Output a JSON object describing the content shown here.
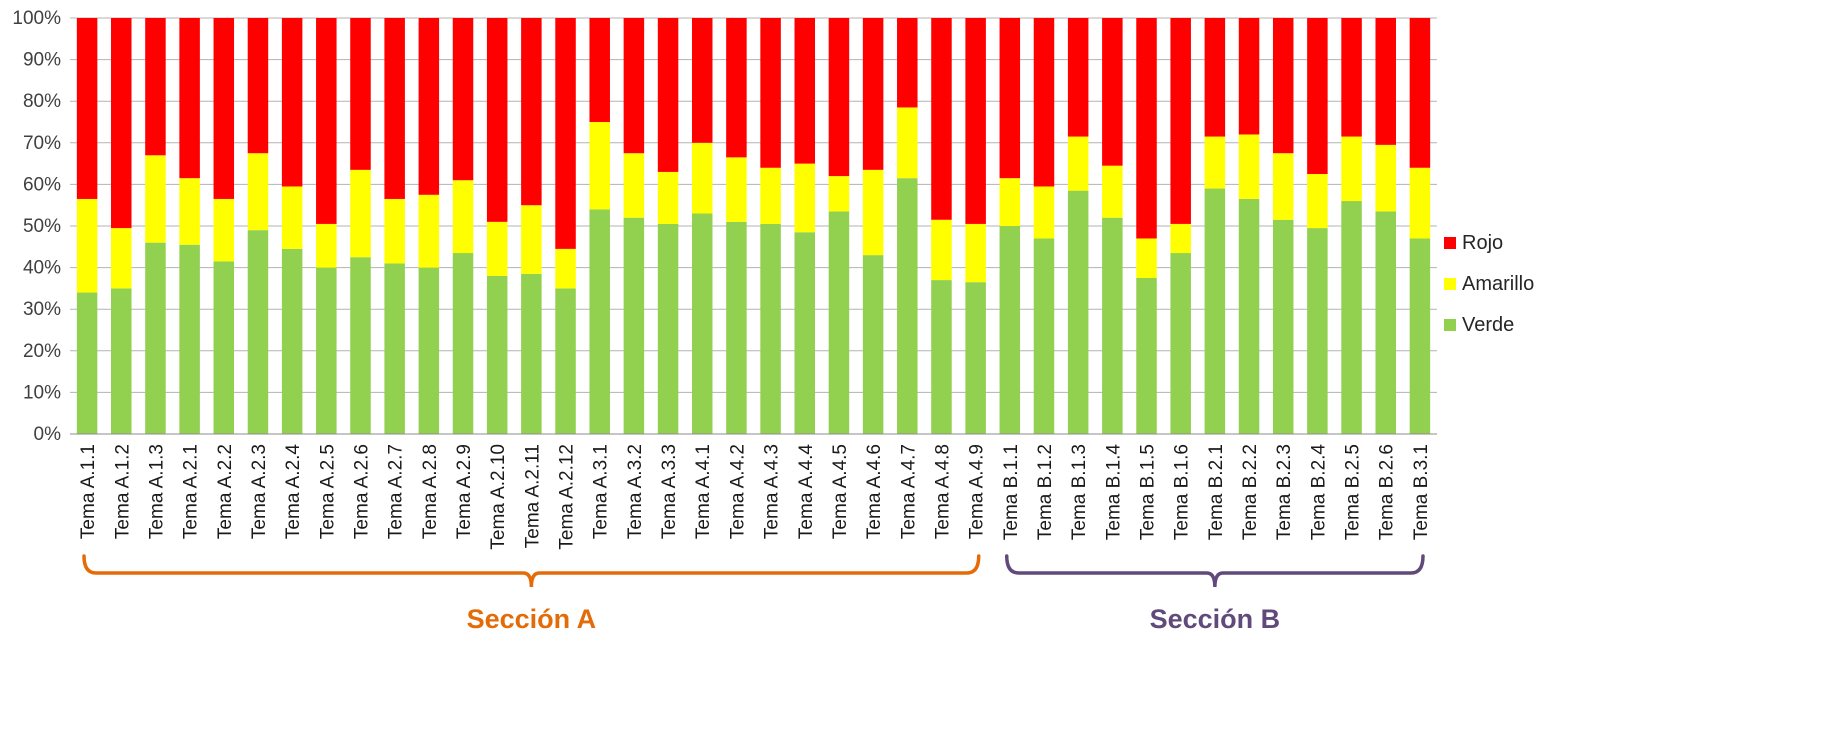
{
  "chart_data": {
    "type": "bar",
    "stacked": true,
    "percent_stacked": true,
    "categories": [
      "Tema A.1.1",
      "Tema A.1.2",
      "Tema A.1.3",
      "Tema A.2.1",
      "Tema A.2.2",
      "Tema A.2.3",
      "Tema A.2.4",
      "Tema A.2.5",
      "Tema A.2.6",
      "Tema A.2.7",
      "Tema A.2.8",
      "Tema A.2.9",
      "Tema A.2.10",
      "Tema A.2.11",
      "Tema A.2.12",
      "Tema A.3.1",
      "Tema A.3.2",
      "Tema A.3.3",
      "Tema A.4.1",
      "Tema A.4.2",
      "Tema A.4.3",
      "Tema A.4.4",
      "Tema A.4.5",
      "Tema A.4.6",
      "Tema A.4.7",
      "Tema A.4.8",
      "Tema A.4.9",
      "Tema B.1.1",
      "Tema B.1.2",
      "Tema B.1.3",
      "Tema B.1.4",
      "Tema B.1.5",
      "Tema B.1.6",
      "Tema B.2.1",
      "Tema B.2.2",
      "Tema B.2.3",
      "Tema B.2.4",
      "Tema B.2.5",
      "Tema B.2.6",
      "Tema B.3.1"
    ],
    "series": [
      {
        "name": "Verde",
        "color": "#92d050",
        "values": [
          34,
          35,
          46,
          45.5,
          41.5,
          49,
          44.5,
          40,
          42.5,
          41,
          40,
          43.5,
          38,
          38.5,
          35,
          54,
          52,
          50.5,
          53,
          51,
          50.5,
          48.5,
          53.5,
          43,
          61.5,
          37,
          36.5,
          50,
          47,
          58.5,
          52,
          37.5,
          43.5,
          59,
          56.5,
          51.5,
          49.5,
          56,
          53.5,
          47
        ]
      },
      {
        "name": "Amarillo",
        "color": "#ffff00",
        "values": [
          22.5,
          14.5,
          21,
          16,
          15,
          18.5,
          15,
          10.5,
          21,
          15.5,
          17.5,
          17.5,
          13,
          16.5,
          9.5,
          21,
          15.5,
          12.5,
          17,
          15.5,
          13.5,
          16.5,
          8.5,
          20.5,
          17,
          14.5,
          14,
          11.5,
          12.5,
          13,
          12.5,
          9.5,
          7,
          12.5,
          15.5,
          16,
          13,
          15.5,
          16,
          17
        ]
      },
      {
        "name": "Rojo",
        "color": "#ff0000",
        "values": [
          43.5,
          50.5,
          33,
          38.5,
          43.5,
          32.5,
          40.5,
          49.5,
          36.5,
          43.5,
          42.5,
          39,
          49,
          45,
          55.5,
          25,
          32.5,
          37,
          30,
          33.5,
          36,
          35,
          38,
          36.5,
          21.5,
          48.5,
          49.5,
          38.5,
          40.5,
          28.5,
          35.5,
          53,
          49.5,
          28.5,
          28,
          32.5,
          37.5,
          28.5,
          30.5,
          36
        ]
      }
    ],
    "y_ticks": [
      "0%",
      "10%",
      "20%",
      "30%",
      "40%",
      "50%",
      "60%",
      "70%",
      "80%",
      "90%",
      "100%"
    ],
    "ylim": [
      0,
      100
    ],
    "grid": true,
    "legend_position": "right",
    "legend_order": [
      "Rojo",
      "Amarillo",
      "Verde"
    ],
    "title": "",
    "xlabel": "",
    "ylabel": "",
    "groups": [
      {
        "label": "Sección A",
        "color": "#e36c09",
        "first": 0,
        "last": 26
      },
      {
        "label": "Sección B",
        "color": "#604a7b",
        "first": 27,
        "last": 39
      }
    ]
  }
}
